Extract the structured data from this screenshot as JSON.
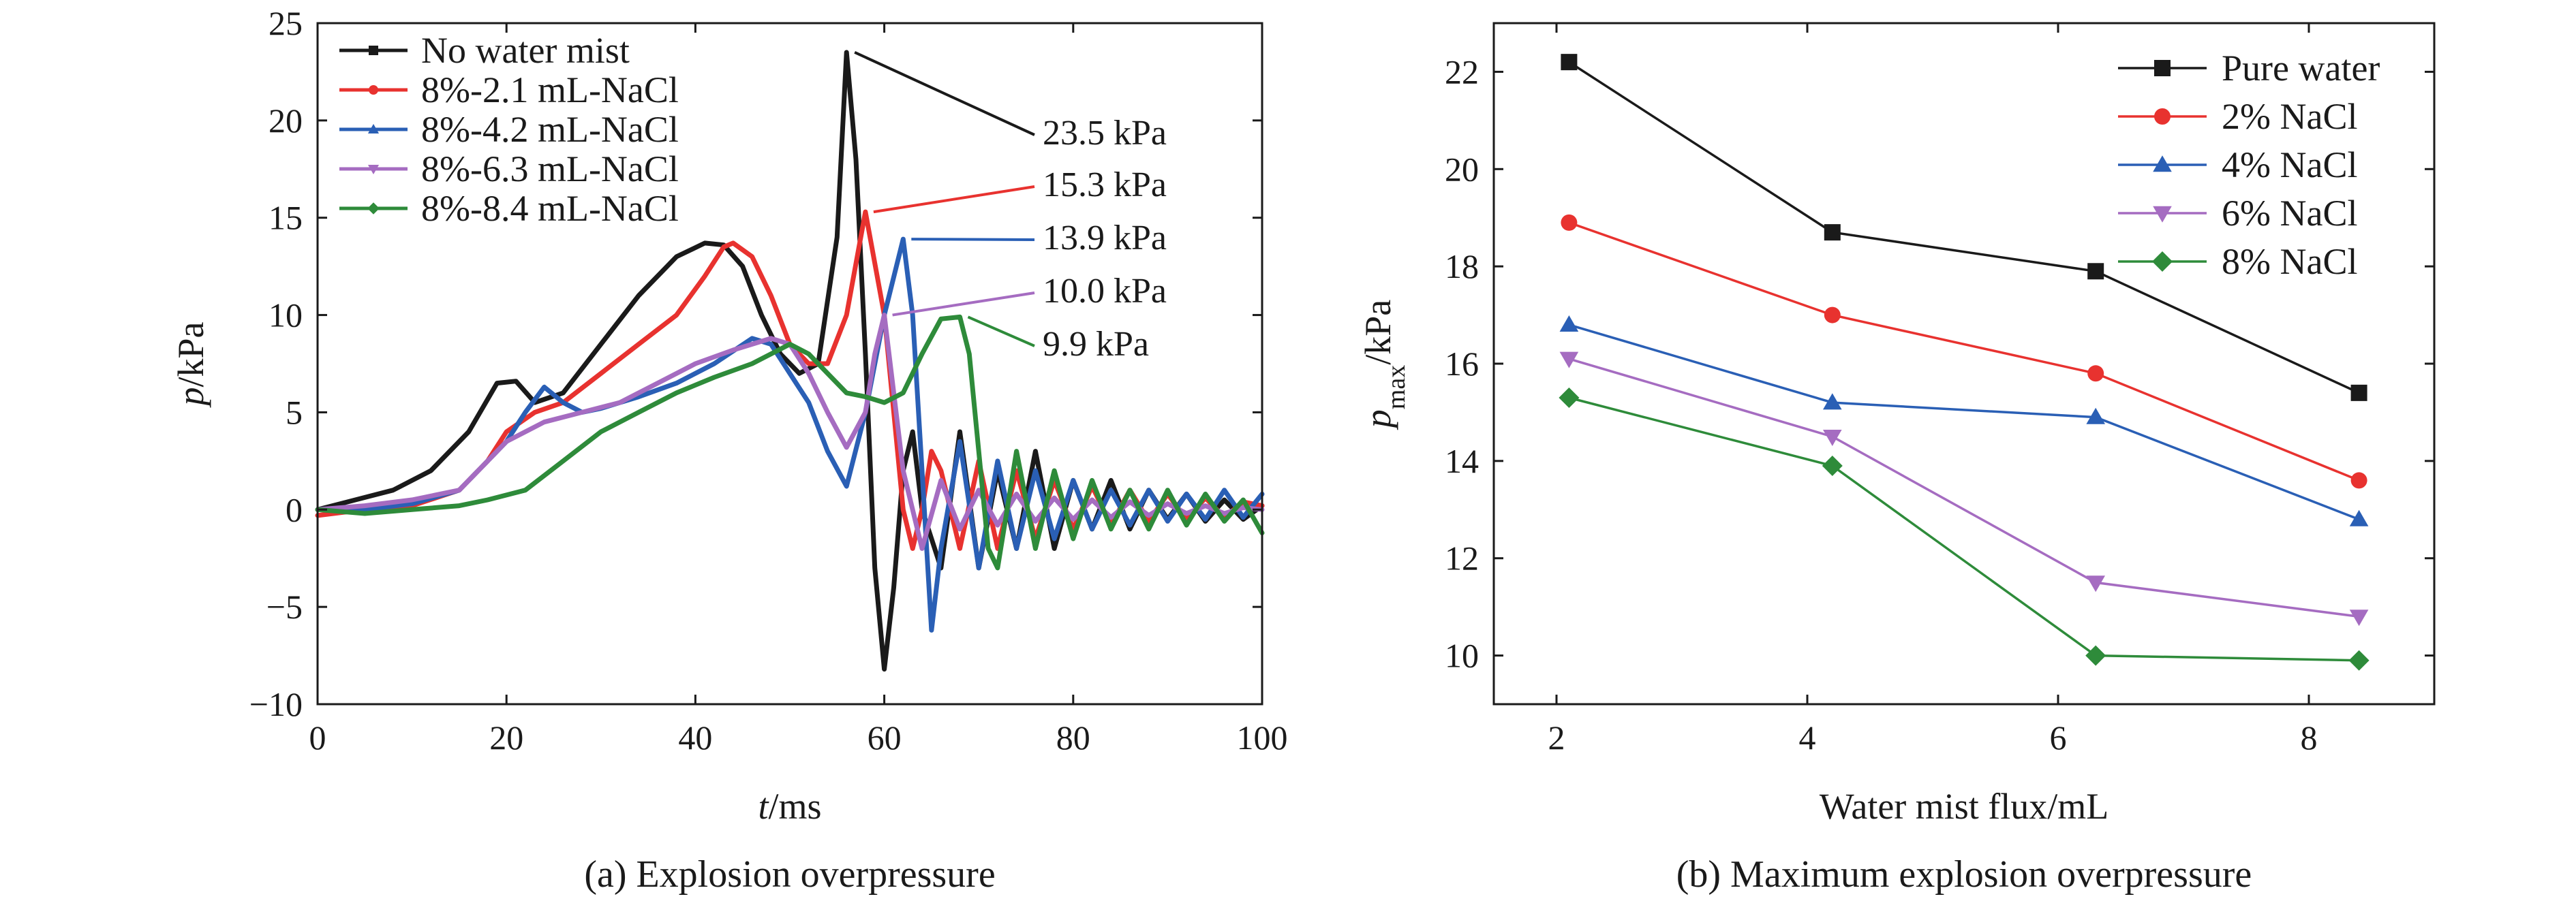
{
  "chart_data": [
    {
      "type": "line",
      "caption": "(a) Explosion overpressure",
      "xlabel": {
        "main": "t",
        "unit": "/ms"
      },
      "ylabel": {
        "main": "p",
        "unit": "/kPa"
      },
      "xlim": [
        0,
        100
      ],
      "ylim": [
        -10,
        25
      ],
      "xticks": [
        0,
        20,
        40,
        60,
        80,
        100
      ],
      "yticks": [
        -10,
        -5,
        0,
        5,
        10,
        15,
        20,
        25
      ],
      "grid": false,
      "legend_position": "top-left",
      "series": [
        {
          "name": "No water mist",
          "color": "#1a1a1a",
          "marker": "square",
          "x": [
            0,
            4,
            8,
            12,
            16,
            19,
            21,
            23,
            26,
            30,
            34,
            38,
            41,
            43,
            45,
            47,
            49,
            51,
            53,
            55,
            56,
            57,
            58,
            59,
            60,
            61,
            62,
            63,
            64,
            66,
            68,
            70,
            72,
            74,
            76,
            78,
            80,
            82,
            84,
            86,
            88,
            90,
            92,
            94,
            96,
            98,
            100
          ],
          "y": [
            0,
            0.5,
            1,
            2,
            4,
            6.5,
            6.6,
            5.5,
            6,
            8.5,
            11,
            13,
            13.7,
            13.6,
            12.5,
            10,
            8,
            7,
            7.5,
            14,
            23.5,
            18,
            8,
            -3,
            -8.2,
            -4,
            2,
            4,
            0,
            -3,
            4,
            -3,
            2,
            -2,
            3,
            -2,
            1.5,
            -1,
            1.5,
            -1,
            1,
            -0.5,
            0.8,
            -0.6,
            0.5,
            -0.5,
            0.2
          ]
        },
        {
          "name": "8%-2.1 mL-NaCl",
          "color": "#e8322f",
          "marker": "circle",
          "x": [
            0,
            5,
            10,
            15,
            18,
            20,
            23,
            26,
            30,
            34,
            38,
            41,
            43,
            44,
            46,
            48,
            50,
            52,
            54,
            56,
            58,
            60,
            61,
            62,
            63,
            64,
            65,
            66,
            68,
            70,
            72,
            74,
            76,
            78,
            80,
            82,
            84,
            86,
            88,
            90,
            92,
            94,
            96,
            98,
            100
          ],
          "y": [
            -0.3,
            0,
            0.2,
            1,
            2.5,
            4,
            5,
            5.5,
            7,
            8.5,
            10,
            12,
            13.5,
            13.7,
            13,
            11,
            8.5,
            7.5,
            7.5,
            10,
            15.3,
            10,
            5,
            0,
            -2,
            0,
            3,
            2,
            -2,
            2.5,
            -2,
            2,
            -1.5,
            1.5,
            -1,
            1.2,
            -0.8,
            1,
            -0.6,
            0.8,
            -0.5,
            0.6,
            -0.4,
            0.4,
            0.2
          ]
        },
        {
          "name": "8%-4.2 mL-NaCl",
          "color": "#2a5fb5",
          "marker": "triangle-up",
          "x": [
            0,
            5,
            10,
            15,
            18,
            20,
            22,
            24,
            26,
            28,
            30,
            34,
            38,
            42,
            46,
            48,
            50,
            52,
            54,
            56,
            58,
            60,
            62,
            63,
            64,
            65,
            66,
            68,
            70,
            72,
            74,
            76,
            78,
            80,
            82,
            84,
            86,
            88,
            90,
            92,
            94,
            96,
            98,
            100
          ],
          "y": [
            0,
            0,
            0.3,
            1,
            2.5,
            3.5,
            5,
            6.3,
            5.5,
            5,
            5.2,
            5.8,
            6.5,
            7.5,
            8.8,
            8.5,
            7,
            5.5,
            3,
            1.2,
            5,
            10,
            13.9,
            10,
            2,
            -6.2,
            -2,
            3.5,
            -3,
            2.5,
            -2,
            2,
            -1.5,
            1.5,
            -1,
            1,
            -0.8,
            1,
            -0.6,
            0.8,
            -0.5,
            1,
            -0.4,
            0.8
          ]
        },
        {
          "name": "8%-6.3 mL-NaCl",
          "color": "#a56cc1",
          "marker": "triangle-down",
          "x": [
            0,
            5,
            10,
            15,
            18,
            20,
            24,
            28,
            32,
            36,
            40,
            44,
            48,
            50,
            52,
            54,
            56,
            58,
            59,
            60,
            61,
            62,
            64,
            66,
            68,
            70,
            72,
            74,
            76,
            78,
            80,
            82,
            84,
            86,
            88,
            90,
            92,
            94,
            96,
            98,
            100
          ],
          "y": [
            0,
            0.2,
            0.5,
            1,
            2.5,
            3.5,
            4.5,
            5,
            5.5,
            6.5,
            7.5,
            8.2,
            8.8,
            8.5,
            7,
            5,
            3.2,
            5,
            8,
            10,
            6,
            2,
            -2,
            1.5,
            -1,
            1,
            -0.8,
            0.8,
            -0.6,
            0.6,
            -0.5,
            0.5,
            -0.4,
            0.4,
            -0.3,
            0.3,
            -0.2,
            0.2,
            -0.2,
            0.1,
            0
          ]
        },
        {
          "name": "8%-8.4 mL-NaCl",
          "color": "#2e8b3a",
          "marker": "diamond",
          "x": [
            0,
            5,
            10,
            15,
            18,
            22,
            26,
            30,
            34,
            38,
            42,
            46,
            50,
            52,
            54,
            56,
            58,
            60,
            62,
            64,
            66,
            68,
            69,
            70,
            71,
            72,
            73,
            74,
            76,
            78,
            80,
            82,
            84,
            86,
            88,
            90,
            92,
            94,
            96,
            98,
            100
          ],
          "y": [
            0,
            -0.2,
            0,
            0.2,
            0.5,
            1,
            2.5,
            4,
            5,
            6,
            6.8,
            7.5,
            8.5,
            8,
            7,
            6,
            5.8,
            5.5,
            6,
            8,
            9.8,
            9.9,
            8,
            3,
            -2,
            -3,
            0,
            3,
            -2,
            2,
            -1.5,
            1.5,
            -1,
            1,
            -1,
            1,
            -0.8,
            0.8,
            -0.6,
            0.5,
            -1.2
          ]
        }
      ],
      "annotations": [
        {
          "text": "23.5 kPa",
          "series": 0,
          "x": 56,
          "y": 23.5
        },
        {
          "text": "15.3 kPa",
          "series": 1,
          "x": 58,
          "y": 15.3
        },
        {
          "text": "13.9 kPa",
          "series": 2,
          "x": 62,
          "y": 13.9
        },
        {
          "text": "10.0 kPa",
          "series": 3,
          "x": 60,
          "y": 10
        },
        {
          "text": "9.9 kPa",
          "series": 4,
          "x": 68,
          "y": 9.9
        }
      ]
    },
    {
      "type": "line",
      "caption": "(b) Maximum explosion overpressure",
      "xlabel": {
        "main": "Water mist flux/mL"
      },
      "ylabel": {
        "main": "p",
        "sub": "max",
        "unit": "/kPa"
      },
      "xlim": [
        1.5,
        9
      ],
      "ylim": [
        9,
        23
      ],
      "xticks": [
        2,
        4,
        6,
        8
      ],
      "yticks": [
        10,
        12,
        14,
        16,
        18,
        20,
        22
      ],
      "grid": false,
      "legend_position": "top-right",
      "x": [
        2.1,
        4.2,
        6.3,
        8.4
      ],
      "series": [
        {
          "name": "Pure water",
          "color": "#1a1a1a",
          "marker": "square",
          "values": [
            22.2,
            18.7,
            17.9,
            15.4
          ]
        },
        {
          "name": "2% NaCl",
          "color": "#e8322f",
          "marker": "circle",
          "values": [
            18.9,
            17.0,
            15.8,
            13.6
          ]
        },
        {
          "name": "4% NaCl",
          "color": "#2a5fb5",
          "marker": "triangle-up",
          "values": [
            16.8,
            15.2,
            14.9,
            12.8
          ]
        },
        {
          "name": "6% NaCl",
          "color": "#a56cc1",
          "marker": "triangle-down",
          "values": [
            16.1,
            14.5,
            11.5,
            10.8
          ]
        },
        {
          "name": "8% NaCl",
          "color": "#2e8b3a",
          "marker": "diamond",
          "values": [
            15.3,
            13.9,
            10.0,
            9.9
          ]
        }
      ]
    }
  ]
}
